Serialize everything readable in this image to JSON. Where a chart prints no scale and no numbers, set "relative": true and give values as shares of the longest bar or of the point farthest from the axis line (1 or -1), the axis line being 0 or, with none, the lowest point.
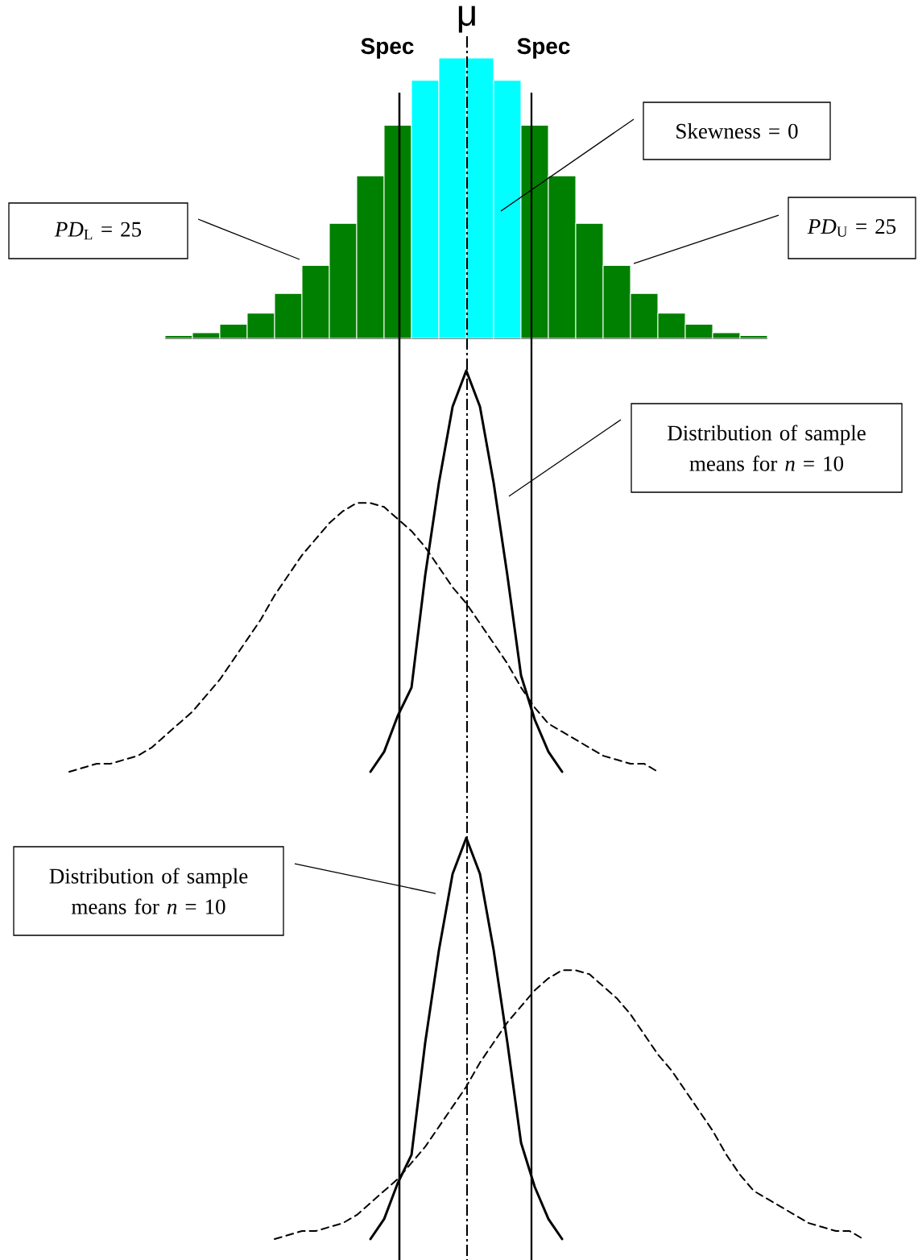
{
  "chart_data": [
    {
      "type": "bar",
      "relative": true,
      "tick_labels": false,
      "categories": [
        null,
        null,
        null,
        null,
        null,
        null,
        null,
        null,
        null,
        null,
        null,
        null,
        null,
        null,
        null,
        null,
        null,
        null,
        null,
        null,
        null,
        null
      ],
      "values": [
        0.01,
        0.02,
        0.05,
        0.09,
        0.16,
        0.26,
        0.41,
        0.58,
        0.76,
        0.92,
        1,
        1,
        0.92,
        0.76,
        0.58,
        0.41,
        0.26,
        0.16,
        0.09,
        0.05,
        0.02,
        0.01
      ],
      "colors": [
        "#008000",
        "#008000",
        "#008000",
        "#008000",
        "#008000",
        "#008000",
        "#008000",
        "#008000",
        "#008000",
        "#00ffff",
        "#00ffff",
        "#00ffff",
        "#00ffff",
        "#008000",
        "#008000",
        "#008000",
        "#008000",
        "#008000",
        "#008000",
        "#008000",
        "#008000",
        "#008000"
      ],
      "annotations": [
        "Skewness = 0",
        "*PD*$_{L}$ = 25",
        "*PD*$_{U}$ = 25",
        "Spec",
        "μ",
        "Spec"
      ]
    },
    {
      "type": "line",
      "relative": true,
      "tick_labels": false,
      "categories": [
        null,
        null,
        null,
        null,
        null,
        null,
        null,
        null,
        null,
        null,
        null,
        null,
        null,
        null,
        null,
        null,
        null,
        null,
        null,
        null,
        null,
        null,
        null,
        null,
        null,
        null,
        null,
        null,
        null,
        null,
        null,
        null,
        null,
        null,
        null,
        null,
        null,
        null,
        null,
        null,
        null,
        null,
        null,
        null,
        null,
        null,
        null,
        null,
        null,
        null,
        null,
        null,
        null,
        null,
        null,
        null,
        null,
        null,
        null
      ],
      "series": [
        {
          "color": "#000000",
          "line_style": "solid",
          "values": [
            null,
            null,
            null,
            null,
            null,
            null,
            null,
            null,
            null,
            null,
            null,
            null,
            null,
            null,
            null,
            null,
            null,
            null,
            null,
            null,
            null,
            null,
            0,
            0.05,
            0.14,
            0.21,
            0.49,
            0.72,
            0.91,
            1,
            0.91,
            0.72,
            0.49,
            0.24,
            0.13,
            0.05,
            0,
            null,
            null,
            null,
            null,
            null,
            null,
            null,
            null,
            null,
            null,
            null,
            null,
            null,
            null,
            null,
            null,
            null,
            null,
            null,
            null,
            null,
            null
          ]
        },
        {
          "color": "#000000",
          "line_style": "dashed",
          "values": [
            0,
            0.01,
            0.02,
            0.02,
            0.03,
            0.04,
            0.06,
            0.09,
            0.12,
            0.15,
            0.19,
            0.23,
            0.28,
            0.33,
            0.38,
            0.44,
            0.49,
            0.54,
            0.58,
            0.62,
            0.65,
            0.67,
            0.67,
            0.66,
            0.63,
            0.6,
            0.56,
            0.51,
            0.46,
            0.42,
            0.37,
            0.32,
            0.27,
            0.21,
            0.16,
            0.12,
            0.1,
            0.08,
            0.06,
            0.04,
            0.03,
            0.02,
            0.02,
            0,
            null,
            null,
            null,
            null,
            null,
            null,
            null,
            null,
            null,
            null,
            null,
            null,
            null,
            null,
            null
          ]
        }
      ],
      "annotations": [
        "Distribution of sample means for *n* = 10"
      ]
    },
    {
      "type": "line",
      "relative": true,
      "tick_labels": false,
      "categories": [
        null,
        null,
        null,
        null,
        null,
        null,
        null,
        null,
        null,
        null,
        null,
        null,
        null,
        null,
        null,
        null,
        null,
        null,
        null,
        null,
        null,
        null,
        null,
        null,
        null,
        null,
        null,
        null,
        null,
        null,
        null,
        null,
        null,
        null,
        null,
        null,
        null,
        null,
        null,
        null,
        null,
        null,
        null,
        null,
        null,
        null,
        null,
        null,
        null,
        null,
        null,
        null,
        null,
        null,
        null,
        null,
        null,
        null,
        null
      ],
      "series": [
        {
          "color": "#000000",
          "line_style": "solid",
          "values": [
            null,
            null,
            null,
            null,
            null,
            null,
            null,
            null,
            null,
            null,
            null,
            null,
            null,
            null,
            null,
            null,
            null,
            null,
            null,
            null,
            null,
            null,
            0,
            0.05,
            0.14,
            0.21,
            0.49,
            0.72,
            0.91,
            1,
            0.91,
            0.72,
            0.49,
            0.24,
            0.13,
            0.05,
            0,
            null,
            null,
            null,
            null,
            null,
            null,
            null,
            null,
            null,
            null,
            null,
            null,
            null,
            null,
            null,
            null,
            null,
            null,
            null,
            null,
            null,
            null
          ]
        },
        {
          "color": "#000000",
          "line_style": "dashed",
          "values": [
            null,
            null,
            null,
            null,
            null,
            null,
            null,
            null,
            null,
            null,
            null,
            null,
            null,
            null,
            null,
            0,
            0.01,
            0.02,
            0.02,
            0.03,
            0.04,
            0.06,
            0.09,
            0.12,
            0.15,
            0.19,
            0.23,
            0.28,
            0.33,
            0.38,
            0.44,
            0.49,
            0.54,
            0.58,
            0.62,
            0.65,
            0.67,
            0.67,
            0.66,
            0.63,
            0.6,
            0.56,
            0.51,
            0.46,
            0.42,
            0.37,
            0.32,
            0.27,
            0.21,
            0.16,
            0.12,
            0.1,
            0.08,
            0.06,
            0.04,
            0.03,
            0.02,
            0.02,
            0
          ]
        }
      ],
      "annotations": [
        "Distribution of sample means for *n* = 10"
      ]
    }
  ]
}
